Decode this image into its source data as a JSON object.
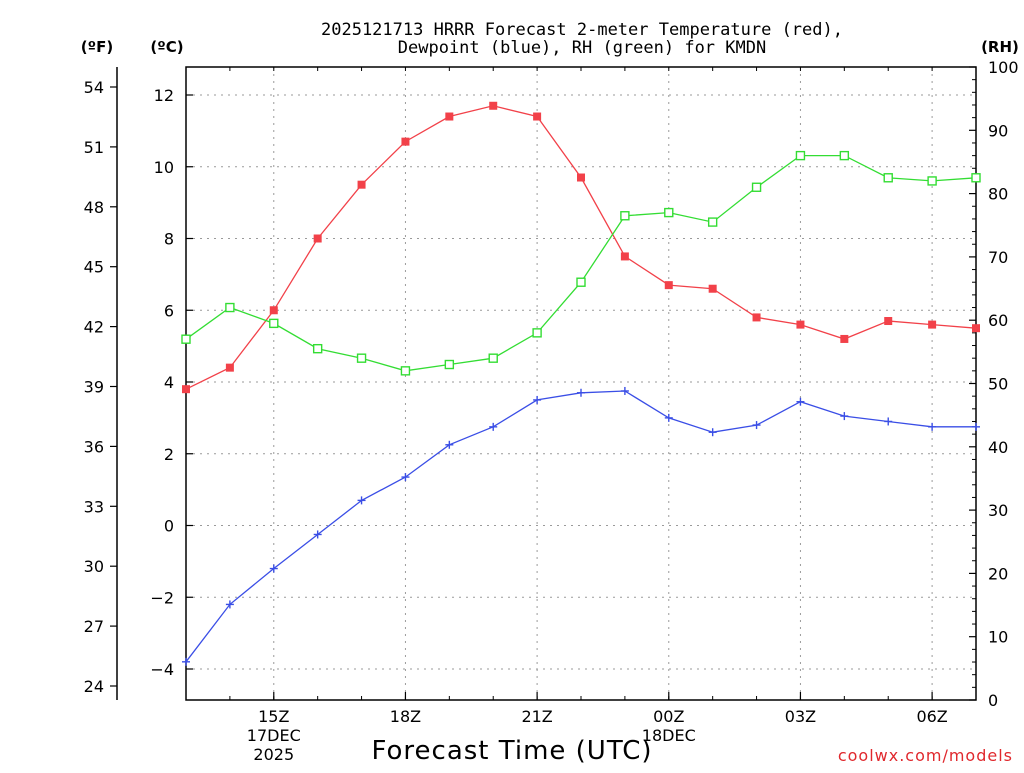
{
  "chart_data": {
    "type": "line",
    "title_lines": [
      "2025121713 HRRR Forecast 2-meter Temperature (red),",
      "Dewpoint (blue), RH (green) for KMDN"
    ],
    "xlabel": "Forecast Time (UTC)",
    "credit": "coolwx.com/models",
    "units": {
      "fahrenheit": "(ºF)",
      "celsius": "(ºC)",
      "rh": "(RH)"
    },
    "hours": [
      13,
      14,
      15,
      16,
      17,
      18,
      19,
      20,
      21,
      22,
      23,
      24,
      25,
      26,
      27,
      28,
      29,
      30,
      31
    ],
    "xlim": [
      13,
      31
    ],
    "x_ticks": [
      {
        "hour": 15,
        "label": "15Z",
        "label2": "17DEC",
        "label3": "2025"
      },
      {
        "hour": 18,
        "label": "18Z"
      },
      {
        "hour": 21,
        "label": "21Z"
      },
      {
        "hour": 24,
        "label": "00Z",
        "label2": "18DEC"
      },
      {
        "hour": 27,
        "label": "03Z"
      },
      {
        "hour": 30,
        "label": "06Z"
      }
    ],
    "y_celsius": {
      "ylim": [
        -4.45,
        13.1
      ],
      "ticks": [
        "12",
        "10",
        "8",
        "6",
        "4",
        "2",
        "0",
        "−2",
        "−4"
      ]
    },
    "y_fahrenheit": {
      "ticks": [
        "54",
        "51",
        "48",
        "45",
        "42",
        "39",
        "36",
        "33",
        "30",
        "27",
        "24"
      ]
    },
    "y_rh": {
      "ylim": [
        0,
        100
      ],
      "ticks": [
        "100",
        "90",
        "80",
        "70",
        "60",
        "50",
        "40",
        "30",
        "20",
        "10",
        "0"
      ]
    },
    "series": [
      {
        "name": "2-meter Temperature",
        "axis": "celsius",
        "color": "#f24149",
        "marker": "filled-square",
        "values": [
          3.8,
          4.4,
          6.0,
          8.0,
          9.5,
          10.7,
          11.4,
          11.7,
          11.4,
          9.7,
          7.5,
          6.7,
          6.6,
          5.8,
          5.6,
          5.2,
          5.7,
          5.6,
          5.5
        ]
      },
      {
        "name": "Dewpoint",
        "axis": "celsius",
        "color": "#3a4ee6",
        "marker": "plus",
        "values": [
          -3.8,
          -2.2,
          -1.2,
          -0.25,
          0.7,
          1.35,
          2.25,
          2.75,
          3.5,
          3.7,
          3.75,
          3.0,
          2.6,
          2.8,
          3.45,
          3.05,
          2.9,
          2.75,
          2.75
        ]
      },
      {
        "name": "RH",
        "axis": "rh",
        "color": "#33dd33",
        "marker": "open-square",
        "values": [
          57,
          62,
          59.5,
          55.5,
          54,
          52,
          53,
          54,
          58,
          66,
          76.5,
          77,
          75.5,
          81,
          86,
          86,
          82.5,
          82,
          82.5
        ]
      }
    ]
  }
}
